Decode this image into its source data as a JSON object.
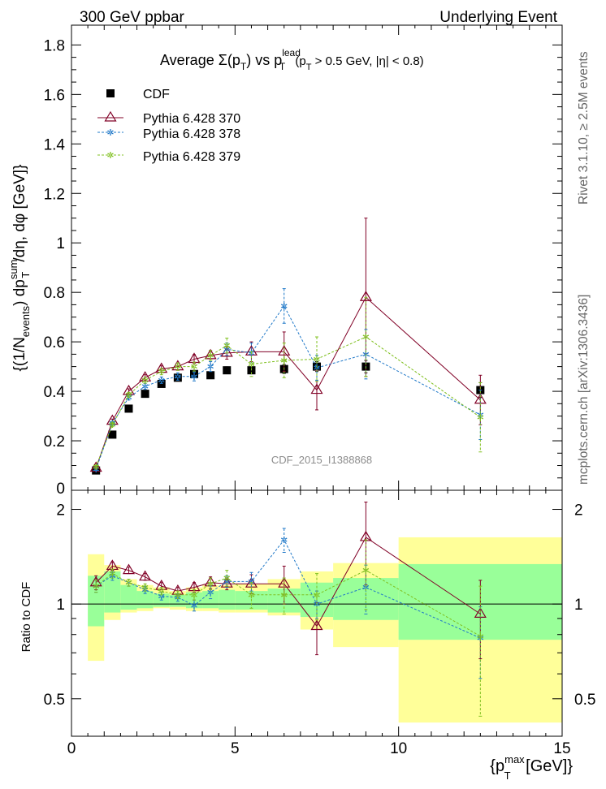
{
  "header": {
    "left": "300 GeV ppbar",
    "right": "Underlying Event"
  },
  "side_labels": {
    "rivet": "Rivet 3.1.10, ≥ 2.5M events",
    "mcplots": "mcplots.cern.ch [arXiv:1306.3436]"
  },
  "watermark": "CDF_2015_I1388868",
  "colors": {
    "cdf": "#000000",
    "p370": "#800026",
    "p378": "#1f78c8",
    "p379": "#80c020",
    "band_inner": "#99ff99",
    "band_outer": "#ffff99"
  },
  "chart_data": [
    {
      "type": "scatter",
      "title": "Average Σ(p_T) vs p_T^lead (p_T > 0.5 GeV, |η| < 0.8)",
      "title_parts": {
        "avg": "Average ",
        "sigma": "Σ(p",
        "t1": "T",
        "close": ") vs p",
        "lead": "lead",
        "t2": "T",
        "cut": " (p",
        "t3": "T",
        "rest": " > 0.5 GeV, |η| < 0.8)"
      },
      "ylabel": "{(1/N_events) dp_T^sum/dη, dφ [GeV]}",
      "ylabel_parts": {
        "a": "{(1/N",
        "b": "events",
        "c": ") dp",
        "d": "sum",
        "e": "T",
        "f": "/dη, dφ [GeV]}"
      },
      "xlim": [
        0,
        15
      ],
      "ylim": [
        0,
        1.88
      ],
      "yticks": [
        "0.2",
        "0.4",
        "0.6",
        "0.8",
        "1",
        "1.2",
        "1.4",
        "1.6",
        "1.8"
      ],
      "ytick_bottom": "0",
      "legend_position": "top-left",
      "x": [
        0.75,
        1.25,
        1.75,
        2.25,
        2.75,
        3.25,
        3.75,
        4.25,
        4.75,
        5.5,
        6.5,
        7.5,
        9.0,
        12.5
      ],
      "series": [
        {
          "name": "CDF",
          "values": [
            0.08,
            0.225,
            0.33,
            0.39,
            0.43,
            0.455,
            0.47,
            0.465,
            0.485,
            0.485,
            0.49,
            0.5,
            0.5,
            0.405
          ],
          "yerr": [
            0.004,
            0.006,
            0.008,
            0.008,
            0.01,
            0.01,
            0.012,
            0.012,
            0.014,
            0.014,
            0.018,
            0.02,
            0.025,
            0.03
          ]
        },
        {
          "name": "Pythia 6.428 370",
          "values": [
            0.09,
            0.28,
            0.4,
            0.455,
            0.49,
            0.5,
            0.53,
            0.545,
            0.555,
            0.56,
            0.56,
            0.405,
            0.78,
            0.365
          ],
          "yerr": [
            0.005,
            0.008,
            0.01,
            0.012,
            0.013,
            0.015,
            0.018,
            0.02,
            0.025,
            0.04,
            0.08,
            0.08,
            0.32,
            0.1
          ]
        },
        {
          "name": "Pythia 6.428 378",
          "values": [
            0.085,
            0.27,
            0.375,
            0.42,
            0.445,
            0.46,
            0.46,
            0.5,
            0.57,
            0.555,
            0.745,
            0.495,
            0.55,
            0.305
          ],
          "yerr": [
            0.005,
            0.008,
            0.01,
            0.012,
            0.013,
            0.015,
            0.018,
            0.02,
            0.025,
            0.04,
            0.07,
            0.05,
            0.1,
            0.1
          ]
        },
        {
          "name": "Pythia 6.428 379",
          "values": [
            0.095,
            0.265,
            0.385,
            0.445,
            0.48,
            0.5,
            0.5,
            0.545,
            0.585,
            0.51,
            0.525,
            0.53,
            0.62,
            0.295
          ],
          "yerr": [
            0.005,
            0.008,
            0.01,
            0.012,
            0.013,
            0.015,
            0.018,
            0.02,
            0.03,
            0.05,
            0.07,
            0.09,
            0.16,
            0.14
          ]
        }
      ]
    },
    {
      "type": "scatter",
      "ylabel": "Ratio to CDF",
      "xlabel": "{p_T^max [GeV]}",
      "xlabel_parts": {
        "a": "{p",
        "b": "max",
        "c": "T",
        "d": " [GeV]}"
      },
      "xticks": [
        "0",
        "5",
        "10",
        "15"
      ],
      "yticks": [
        "0.5",
        "1",
        "2"
      ],
      "ylim": [
        0.38,
        2.3
      ],
      "yscale": "log",
      "bands": {
        "edges": [
          0.5,
          1.0,
          1.5,
          2.0,
          2.5,
          3.0,
          3.5,
          4.0,
          4.5,
          5.0,
          6.0,
          7.0,
          8.0,
          10.0,
          15.0
        ],
        "inner": [
          [
            0.85,
            1.23
          ],
          [
            0.94,
            1.27
          ],
          [
            0.96,
            1.15
          ],
          [
            0.97,
            1.1
          ],
          [
            0.98,
            1.08
          ],
          [
            0.98,
            1.07
          ],
          [
            0.97,
            1.09
          ],
          [
            0.97,
            1.1
          ],
          [
            0.96,
            1.11
          ],
          [
            0.96,
            1.1
          ],
          [
            0.94,
            1.12
          ],
          [
            0.91,
            1.17
          ],
          [
            0.89,
            1.21
          ],
          [
            0.77,
            1.34
          ]
        ],
        "outer": [
          [
            0.66,
            1.44
          ],
          [
            0.89,
            1.33
          ],
          [
            0.94,
            1.2
          ],
          [
            0.95,
            1.15
          ],
          [
            0.97,
            1.13
          ],
          [
            0.96,
            1.1
          ],
          [
            0.95,
            1.13
          ],
          [
            0.95,
            1.15
          ],
          [
            0.94,
            1.15
          ],
          [
            0.94,
            1.16
          ],
          [
            0.92,
            1.2
          ],
          [
            0.83,
            1.27
          ],
          [
            0.73,
            1.35
          ],
          [
            0.42,
            1.63
          ]
        ]
      },
      "series": [
        {
          "name": "Pythia 6.428 370",
          "values": [
            1.17,
            1.32,
            1.28,
            1.22,
            1.14,
            1.1,
            1.13,
            1.17,
            1.16,
            1.16,
            1.16,
            0.85,
            1.63,
            0.93
          ],
          "yerr": [
            0.06,
            0.04,
            0.03,
            0.03,
            0.03,
            0.03,
            0.04,
            0.05,
            0.05,
            0.08,
            0.16,
            0.16,
            0.48,
            0.26
          ]
        },
        {
          "name": "Pythia 6.428 378",
          "values": [
            1.14,
            1.23,
            1.17,
            1.11,
            1.06,
            1.05,
            0.99,
            1.09,
            1.18,
            1.18,
            1.6,
            1.0,
            1.13,
            0.78
          ],
          "yerr": [
            0.05,
            0.04,
            0.03,
            0.03,
            0.03,
            0.03,
            0.04,
            0.05,
            0.05,
            0.08,
            0.14,
            0.1,
            0.2,
            0.2
          ]
        },
        {
          "name": "Pythia 6.428 379",
          "values": [
            1.14,
            1.25,
            1.17,
            1.13,
            1.1,
            1.07,
            1.07,
            1.16,
            1.21,
            1.07,
            1.07,
            1.07,
            1.28,
            0.79
          ],
          "yerr": [
            0.05,
            0.04,
            0.03,
            0.03,
            0.03,
            0.03,
            0.04,
            0.05,
            0.07,
            0.1,
            0.14,
            0.18,
            0.32,
            0.35
          ]
        }
      ]
    }
  ]
}
